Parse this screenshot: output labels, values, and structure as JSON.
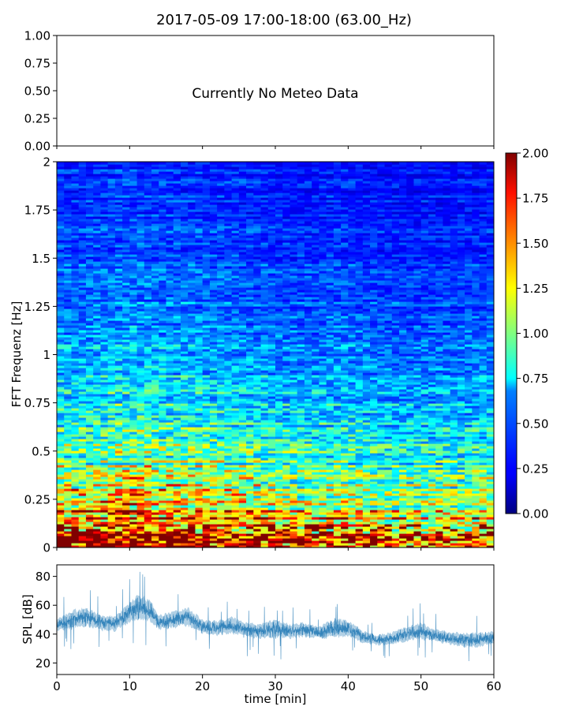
{
  "figure": {
    "title": "2017-05-09 17:00-18:00 (63.00_Hz)"
  },
  "chart_data": [
    {
      "type": "line",
      "panel": "meteo",
      "annotation": "Currently No Meteo Data",
      "series": [],
      "ylim": [
        0,
        1
      ],
      "yticks": [
        0,
        0.25,
        0.5,
        0.75,
        1
      ],
      "ytick_labels": [
        "0.00",
        "0.25",
        "0.50",
        "0.75",
        "1.00"
      ],
      "xlim": [
        0,
        60
      ],
      "grid": false
    },
    {
      "type": "heatmap",
      "panel": "spectrogram",
      "ylabel": "FFT Frequenz [Hz]",
      "xlim": [
        0,
        60
      ],
      "ylim": [
        0,
        2
      ],
      "yticks": [
        0,
        0.25,
        0.5,
        0.75,
        1,
        1.25,
        1.5,
        1.75,
        2
      ],
      "ytick_labels": [
        "0",
        "0.25",
        "0.5",
        "0.75",
        "1",
        "1.25",
        "1.5",
        "1.75",
        "2"
      ],
      "colormap": "jet",
      "colorbar": {
        "vmin": 0,
        "vmax": 2,
        "ticks": [
          0,
          0.25,
          0.5,
          0.75,
          1,
          1.25,
          1.5,
          1.75,
          2
        ],
        "tick_labels": [
          "0.00",
          "0.25",
          "0.50",
          "0.75",
          "1.00",
          "1.25",
          "1.50",
          "1.75",
          "2.00"
        ],
        "placement": "right"
      },
      "frequency_profile": {
        "frequency_hz": [
          0,
          0.05,
          0.1,
          0.2,
          0.3,
          0.4,
          0.5,
          0.6,
          0.75,
          1.0,
          1.25,
          1.5,
          1.75,
          2.0
        ],
        "typical_value": [
          1.9,
          1.75,
          1.55,
          1.3,
          1.1,
          0.95,
          0.85,
          0.75,
          0.68,
          0.55,
          0.45,
          0.38,
          0.33,
          0.3
        ]
      },
      "time_profile": {
        "time_min": [
          0,
          5,
          10,
          15,
          20,
          25,
          30,
          35,
          40,
          45,
          50,
          55,
          60
        ],
        "relative_level": [
          1.05,
          1.05,
          1.15,
          1.05,
          1.05,
          1.0,
          0.92,
          0.9,
          0.95,
          0.85,
          0.85,
          0.85,
          0.9
        ]
      },
      "grid": false
    },
    {
      "type": "line",
      "panel": "spl",
      "xlabel": "time [min]",
      "ylabel": "SPL [dB]",
      "xlim": [
        0,
        60
      ],
      "ylim": [
        12,
        88
      ],
      "xticks": [
        0,
        10,
        20,
        30,
        40,
        50,
        60
      ],
      "xtick_labels": [
        "0",
        "10",
        "20",
        "30",
        "40",
        "50",
        "60"
      ],
      "yticks": [
        20,
        40,
        60,
        80
      ],
      "ytick_labels": [
        "20",
        "40",
        "60",
        "80"
      ],
      "series": [
        {
          "color": "#1f77b4",
          "x": [
            0,
            2,
            4,
            6,
            8,
            10,
            11,
            12,
            13,
            14,
            16,
            18,
            20,
            22,
            24,
            26,
            28,
            30,
            32,
            34,
            36,
            38,
            40,
            42,
            44,
            46,
            48,
            50,
            52,
            54,
            56,
            58,
            60
          ],
          "y": [
            46,
            50,
            52,
            48,
            47,
            55,
            58,
            58,
            55,
            48,
            50,
            52,
            45,
            44,
            46,
            43,
            42,
            44,
            42,
            43,
            41,
            44,
            44,
            38,
            36,
            37,
            40,
            42,
            39,
            37,
            36,
            36,
            38
          ],
          "spread": [
            6,
            9,
            9,
            8,
            7,
            10,
            12,
            11,
            10,
            7,
            8,
            9,
            7,
            7,
            8,
            7,
            7,
            9,
            7,
            7,
            6,
            9,
            8,
            6,
            5,
            6,
            7,
            8,
            6,
            6,
            7,
            7,
            6
          ]
        }
      ],
      "grid": false
    }
  ]
}
